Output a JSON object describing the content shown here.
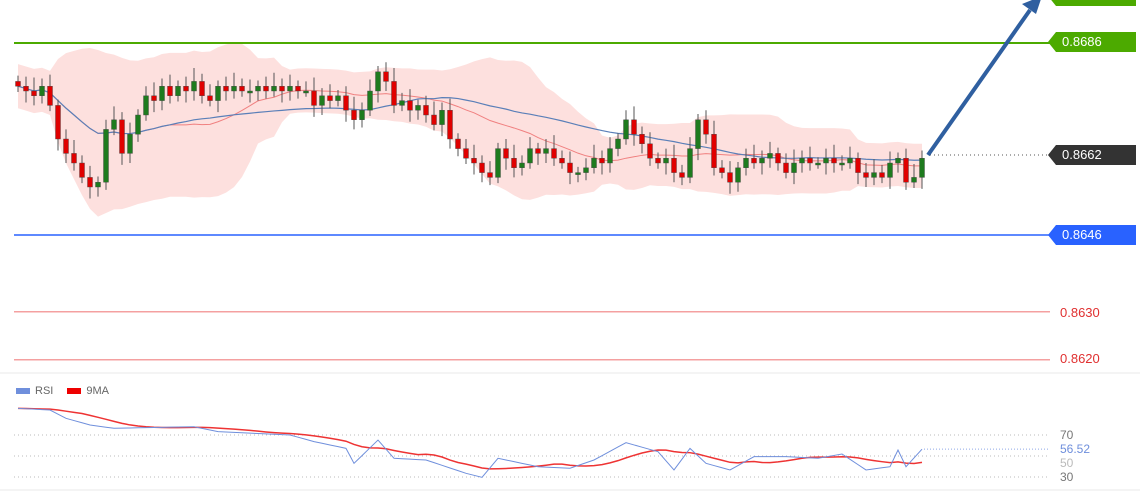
{
  "chart_data": [
    {
      "type": "candlestick",
      "title": "",
      "price_levels": [
        {
          "value": "0.8686",
          "role": "resistance",
          "color": "#4caa00"
        },
        {
          "value": "0.8662",
          "role": "current",
          "color": "#333333"
        },
        {
          "value": "0.8646",
          "role": "support",
          "color": "#2962ff"
        },
        {
          "value": "0.8630",
          "role": "level",
          "color": "#e03030"
        },
        {
          "value": "0.8620",
          "role": "level",
          "color": "#e03030"
        }
      ],
      "top_label_partial": true,
      "closes": [
        0.8677,
        0.8676,
        0.8675,
        0.8677,
        0.8673,
        0.8666,
        0.8663,
        0.8661,
        0.8658,
        0.8656,
        0.8657,
        0.8668,
        0.867,
        0.8663,
        0.8667,
        0.8671,
        0.8675,
        0.8674,
        0.8677,
        0.8675,
        0.8677,
        0.8676,
        0.8678,
        0.8675,
        0.8674,
        0.8677,
        0.8676,
        0.8677,
        0.8676,
        0.8676,
        0.8677,
        0.8676,
        0.8677,
        0.8676,
        0.8677,
        0.8676,
        0.8676,
        0.8673,
        0.8675,
        0.8674,
        0.8675,
        0.8672,
        0.867,
        0.8672,
        0.8676,
        0.868,
        0.8678,
        0.8673,
        0.8674,
        0.8672,
        0.8673,
        0.8671,
        0.8669,
        0.8672,
        0.8666,
        0.8664,
        0.8662,
        0.8661,
        0.8659,
        0.8658,
        0.8664,
        0.8662,
        0.866,
        0.8661,
        0.8664,
        0.8663,
        0.8664,
        0.8662,
        0.8661,
        0.8659,
        0.8659,
        0.866,
        0.8662,
        0.8661,
        0.8664,
        0.8666,
        0.867,
        0.8667,
        0.8665,
        0.8662,
        0.8661,
        0.8662,
        0.8659,
        0.8658,
        0.8664,
        0.867,
        0.8667,
        0.866,
        0.8659,
        0.8657,
        0.866,
        0.8662,
        0.8661,
        0.8662,
        0.8663,
        0.8661,
        0.8659,
        0.8661,
        0.8662,
        0.8661,
        0.8661,
        0.8662,
        0.8661,
        0.8661,
        0.8662,
        0.8659,
        0.8658,
        0.8659,
        0.8658,
        0.8661,
        0.8662,
        0.8657,
        0.8658,
        0.8662
      ],
      "y_range": [
        0.8612,
        0.8695
      ],
      "indicators": [
        "Bollinger Bands",
        "Moving average"
      ],
      "annotation": "upward arrow",
      "colors": {
        "up": "#1e7b1e",
        "down": "#e00000",
        "band": "#fde0de",
        "ma_fast": "#f08080",
        "ma_slow": "#5a7fb8",
        "arrow": "#2f5fa0"
      }
    },
    {
      "type": "line",
      "legend": [
        {
          "name": "RSI",
          "color": "#6f8fdc"
        },
        {
          "name": "9MA",
          "color": "#ee0000"
        }
      ],
      "legend_placement": "top-left",
      "y_ticks": [
        "70",
        "50",
        "30"
      ],
      "last_value": "56.52",
      "rsi_points": [
        [
          0,
          95.4
        ],
        [
          4,
          93.8
        ],
        [
          6,
          85.9
        ],
        [
          9,
          79.5
        ],
        [
          12,
          76.4
        ],
        [
          22,
          77.9
        ],
        [
          25,
          73.2
        ],
        [
          34,
          70
        ],
        [
          37,
          63.7
        ],
        [
          41,
          57.3
        ],
        [
          42,
          43
        ],
        [
          45,
          65.2
        ],
        [
          47,
          47.8
        ],
        [
          51,
          46.2
        ],
        [
          56,
          33.5
        ],
        [
          58,
          29.7
        ],
        [
          60,
          47.8
        ],
        [
          65,
          39.8
        ],
        [
          69,
          38.3
        ],
        [
          72,
          46.2
        ],
        [
          76,
          62.7
        ],
        [
          80,
          54.1
        ],
        [
          82,
          36.7
        ],
        [
          84,
          57.3
        ],
        [
          86,
          43
        ],
        [
          89,
          36.7
        ],
        [
          92,
          49.4
        ],
        [
          96,
          49.4
        ],
        [
          100,
          47.8
        ],
        [
          103,
          51.9
        ],
        [
          106,
          36.7
        ],
        [
          109,
          39.8
        ],
        [
          110,
          55.7
        ],
        [
          111,
          39.8
        ],
        [
          113,
          56.52
        ]
      ]
    }
  ]
}
